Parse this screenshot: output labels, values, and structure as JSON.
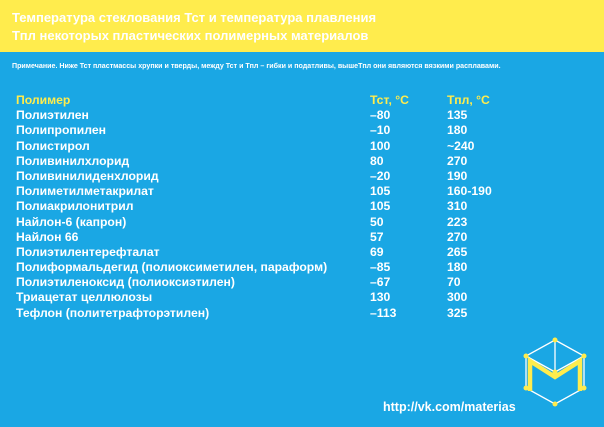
{
  "header": {
    "line1": "Температура стеклования Тст и температура плавления",
    "line2": "Тпл некоторых пластических полимерных материалов"
  },
  "note": "Примечание. Ниже Тст пластмассы хрупки и тверды, между Тст и Тпл – гибки и податливы, вышеТпл они являются вязкими расплавами.",
  "table": {
    "columns": [
      "Полимер",
      "Тст, °С",
      "Тпл, °С"
    ],
    "rows": [
      [
        "Полиэтилен",
        "–80",
        "135"
      ],
      [
        "Полипропилен",
        "–10",
        "180"
      ],
      [
        "Полистирол",
        "100",
        "~240"
      ],
      [
        "Поливинилхлорид",
        "80",
        "270"
      ],
      [
        "Поливинилиденхлорид",
        "–20",
        "190"
      ],
      [
        "Полиметилметакрилат",
        "105",
        "160-190"
      ],
      [
        "Полиакрилонитрил",
        "105",
        "310"
      ],
      [
        "Найлон-6 (капрон)",
        "50",
        "223"
      ],
      [
        "Найлон 66",
        "57",
        "270"
      ],
      [
        "Полиэтилентерефталат",
        "69",
        "265"
      ],
      [
        "Полиформальдегид (полиоксиметилен, параформ)",
        "–85",
        "180"
      ],
      [
        "Полиэтиленоксид (полиоксиэтилен)",
        "–67",
        "70"
      ],
      [
        "Триацетат целлюлозы",
        "130",
        "300"
      ],
      [
        "Тефлон (политетрафторэтилен)",
        "–113",
        "325"
      ]
    ]
  },
  "footer": {
    "url": "http://vk.com/materias"
  },
  "colors": {
    "background": "#1aa7e4",
    "accent": "#ffec4d",
    "text": "#ffffff"
  },
  "icons": {
    "logo": "hexagon-cube-m-logo"
  }
}
